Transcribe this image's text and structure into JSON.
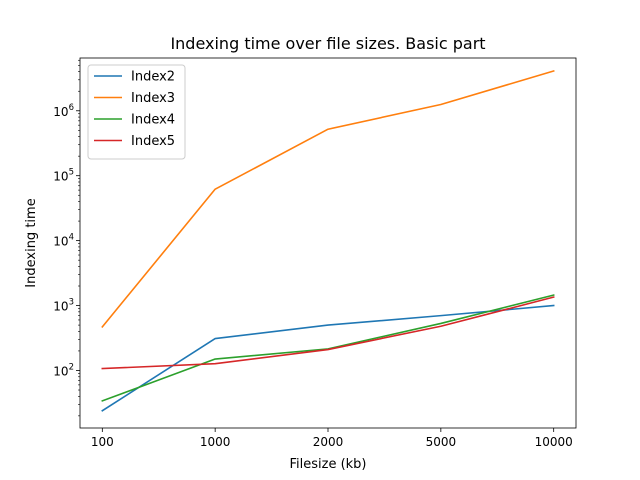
{
  "chart_data": {
    "type": "line",
    "title": "Indexing time over file sizes. Basic part",
    "xlabel": "Filesize (kb)",
    "ylabel": "Indexing time",
    "categories": [
      "100",
      "1000",
      "2000",
      "5000",
      "10000"
    ],
    "yscale": "log",
    "ylim": [
      13,
      6500000
    ],
    "y_ticks": [
      {
        "base": "10",
        "exp": "2",
        "value": 100
      },
      {
        "base": "10",
        "exp": "3",
        "value": 1000
      },
      {
        "base": "10",
        "exp": "4",
        "value": 10000
      },
      {
        "base": "10",
        "exp": "5",
        "value": 100000
      },
      {
        "base": "10",
        "exp": "6",
        "value": 1000000
      }
    ],
    "grid": false,
    "legend_position": "top-left",
    "series": [
      {
        "name": "Index2",
        "color": "#1f77b4",
        "values": [
          24,
          310,
          500,
          700,
          1000
        ]
      },
      {
        "name": "Index3",
        "color": "#ff7f0e",
        "values": [
          470,
          62000,
          520000,
          1250000,
          4100000
        ]
      },
      {
        "name": "Index4",
        "color": "#2ca02c",
        "values": [
          34,
          150,
          215,
          530,
          1450
        ]
      },
      {
        "name": "Index5",
        "color": "#d62728",
        "values": [
          107,
          127,
          210,
          480,
          1350
        ]
      }
    ]
  }
}
